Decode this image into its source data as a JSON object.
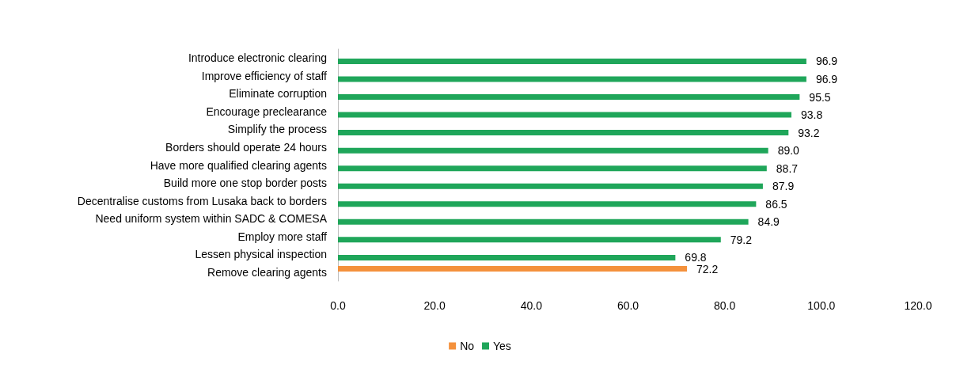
{
  "chart_data": {
    "type": "bar",
    "orientation": "horizontal",
    "categories": [
      "Introduce electronic clearing",
      "Improve efficiency of staff",
      "Eliminate corruption",
      "Encourage preclearance",
      "Simplify the process",
      "Borders should operate 24 hours",
      "Have more qualified clearing agents",
      "Build more one stop border posts",
      "Decentralise customs from Lusaka back to borders",
      "Need uniform system within SADC & COMESA",
      "Employ more staff",
      "Lessen physical inspection",
      "Remove clearing agents"
    ],
    "series": [
      {
        "name": "No",
        "color": "#f4913c",
        "values": [
          null,
          null,
          null,
          null,
          null,
          null,
          null,
          null,
          null,
          null,
          null,
          null,
          72.2
        ],
        "value_labels": [
          null,
          null,
          null,
          null,
          null,
          null,
          null,
          null,
          null,
          null,
          null,
          null,
          "72.2"
        ]
      },
      {
        "name": "Yes",
        "color": "#1fa65a",
        "values": [
          96.9,
          96.9,
          95.5,
          93.8,
          93.2,
          89.0,
          88.7,
          87.9,
          86.5,
          84.9,
          79.2,
          69.8,
          null
        ],
        "value_labels": [
          "96.9",
          "96.9",
          "95.5",
          "93.8",
          "93.2",
          "89.0",
          "88.7",
          "87.9",
          "86.5",
          "84.9",
          "79.2",
          "69.8",
          null
        ]
      }
    ],
    "xlim": [
      0,
      120
    ],
    "xticks": [
      {
        "value": 0,
        "label": "0.0"
      },
      {
        "value": 20,
        "label": "20.0"
      },
      {
        "value": 40,
        "label": "40.0"
      },
      {
        "value": 60,
        "label": "60.0"
      },
      {
        "value": 80,
        "label": "80.0"
      },
      {
        "value": 100,
        "label": "100.0"
      },
      {
        "value": 120,
        "label": "120.0"
      }
    ],
    "grid": false,
    "legend": "bottom"
  }
}
